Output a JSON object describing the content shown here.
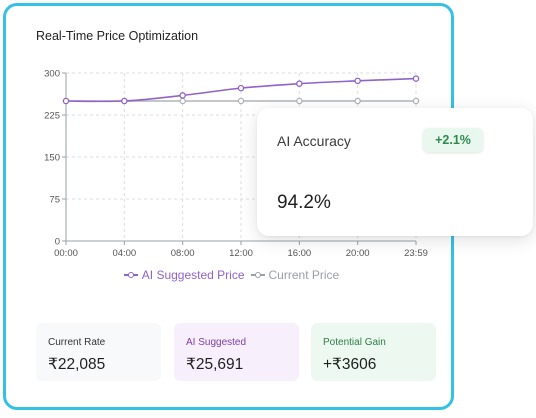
{
  "card": {
    "title": "Real-Time Price Optimization"
  },
  "chart_data": {
    "type": "line",
    "x": [
      "00:00",
      "04:00",
      "08:00",
      "12:00",
      "16:00",
      "20:00",
      "23:59"
    ],
    "y_ticks": [
      0,
      75,
      150,
      225,
      300
    ],
    "ylim": [
      0,
      300
    ],
    "grid": true,
    "legend_position": "bottom-center",
    "series": [
      {
        "name": "AI Suggested Price",
        "color": "#8f63c9",
        "values": [
          250,
          250,
          260,
          273,
          281,
          286,
          290
        ]
      },
      {
        "name": "Current Price",
        "color": "#b0b4b9",
        "values": [
          250,
          250,
          250,
          250,
          250,
          250,
          250
        ]
      }
    ]
  },
  "stats": {
    "current_rate": {
      "label": "Current Rate",
      "value": "₹22,085"
    },
    "ai_suggested": {
      "label": "AI Suggested",
      "value": "₹25,691"
    },
    "potential_gain": {
      "label": "Potential Gain",
      "value": "+₹3606"
    }
  },
  "accuracy": {
    "label": "AI Accuracy",
    "change": "+2.1%",
    "value": "94.2%"
  },
  "colors": {
    "border": "#35c0e6",
    "ai": "#8f63c9",
    "current": "#b0b4b9",
    "positive": "#2d8a4a"
  }
}
